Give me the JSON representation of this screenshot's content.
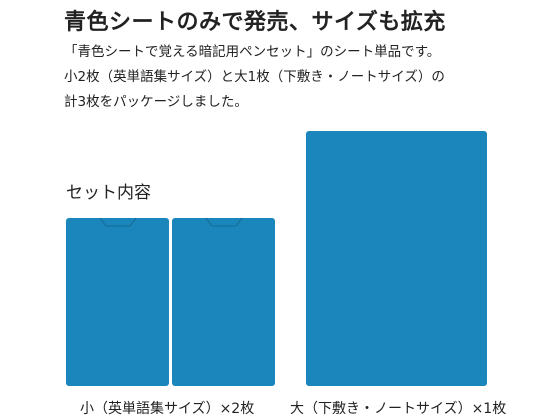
{
  "header": {
    "title": "青色シートのみで発売、サイズも拡充"
  },
  "description": {
    "lines": [
      "「青色シートで覚える暗記用ペンセット」のシート単品です。",
      "小2枚（英単語集サイズ）と大1枚（下敷き・ノートサイズ）の",
      "計3枚をパッケージしました。"
    ]
  },
  "set": {
    "heading": "セット内容",
    "items": [
      {
        "caption": "小（英単語集サイズ）×2枚"
      },
      {
        "caption": "大（下敷き・ノートサイズ）×1枚"
      }
    ]
  }
}
